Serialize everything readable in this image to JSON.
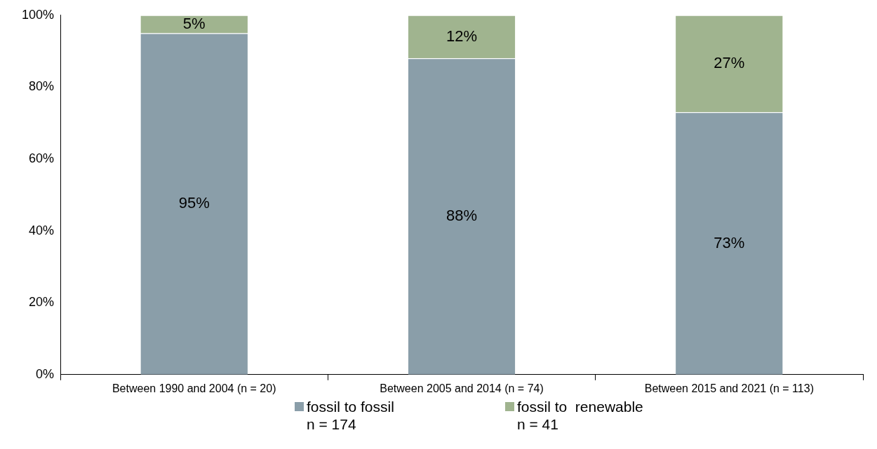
{
  "chart_data": {
    "type": "bar",
    "stacked": true,
    "categories": [
      "Between 1990 and 2004 (n = 20)",
      "Between 2005 and 2014 (n = 74)",
      "Between 2015 and 2021 (n = 113)"
    ],
    "series": [
      {
        "name": "fossil to fossil\nn = 174",
        "color": "#8a9ea9",
        "values": [
          95,
          88,
          73
        ],
        "value_labels": [
          "95%",
          "88%",
          "73%"
        ]
      },
      {
        "name": "fossil to  renewable\nn = 41",
        "color": "#a0b48f",
        "values": [
          5,
          12,
          27
        ],
        "value_labels": [
          "5%",
          "12%",
          "27%"
        ]
      }
    ],
    "ylim": [
      0,
      100
    ],
    "yticks": [
      {
        "value": 0,
        "label": "0%"
      },
      {
        "value": 20,
        "label": "20%"
      },
      {
        "value": 40,
        "label": "40%"
      },
      {
        "value": 60,
        "label": "60%"
      },
      {
        "value": 80,
        "label": "80%"
      },
      {
        "value": 100,
        "label": "100%"
      }
    ],
    "grid": false,
    "legend": "bottom"
  }
}
